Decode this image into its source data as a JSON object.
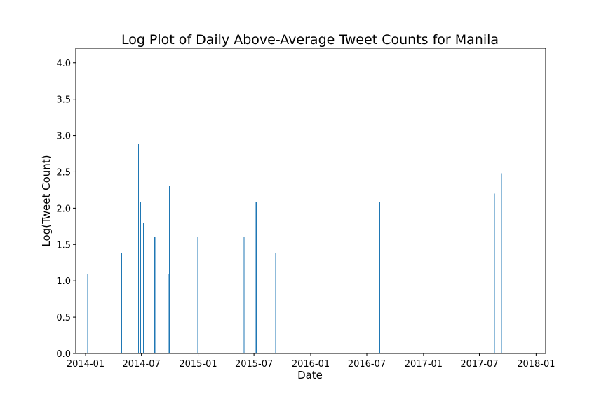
{
  "chart_data": {
    "type": "bar",
    "title": "Log Plot of Daily Above-Average Tweet Counts for Manila",
    "xlabel": "Date",
    "ylabel": "Log(Tweet Count)",
    "ylim": [
      0,
      4.2
    ],
    "xlim": [
      "2013-11-30",
      "2018-02-01"
    ],
    "yticks": [
      0.0,
      0.5,
      1.0,
      1.5,
      2.0,
      2.5,
      3.0,
      3.5,
      4.0
    ],
    "ytick_labels": [
      "0.0",
      "0.5",
      "1.0",
      "1.5",
      "2.0",
      "2.5",
      "3.0",
      "3.5",
      "4.0"
    ],
    "xticks": [
      "2014-01-01",
      "2014-07-01",
      "2015-01-01",
      "2015-07-01",
      "2016-01-01",
      "2016-07-01",
      "2017-01-01",
      "2017-07-01",
      "2018-01-01"
    ],
    "xtick_labels": [
      "2014-01",
      "2014-07",
      "2015-01",
      "2015-07",
      "2016-01",
      "2016-07",
      "2017-01",
      "2017-07",
      "2018-01"
    ],
    "bar_color": "#1f77b4",
    "grid": false,
    "legend": false,
    "points": [
      {
        "x": "2014-01-08",
        "y": 1.1
      },
      {
        "x": "2014-04-27",
        "y": 1.38
      },
      {
        "x": "2014-06-21",
        "y": 2.89
      },
      {
        "x": "2014-06-28",
        "y": 2.08
      },
      {
        "x": "2014-07-08",
        "y": 1.79
      },
      {
        "x": "2014-08-13",
        "y": 1.61
      },
      {
        "x": "2014-09-26",
        "y": 1.1
      },
      {
        "x": "2014-09-30",
        "y": 2.3
      },
      {
        "x": "2014-12-31",
        "y": 1.61
      },
      {
        "x": "2015-05-30",
        "y": 1.61
      },
      {
        "x": "2015-07-08",
        "y": 2.08
      },
      {
        "x": "2015-09-09",
        "y": 1.38
      },
      {
        "x": "2016-08-12",
        "y": 2.08
      },
      {
        "x": "2017-08-18",
        "y": 2.2
      },
      {
        "x": "2017-09-10",
        "y": 2.48
      }
    ]
  }
}
